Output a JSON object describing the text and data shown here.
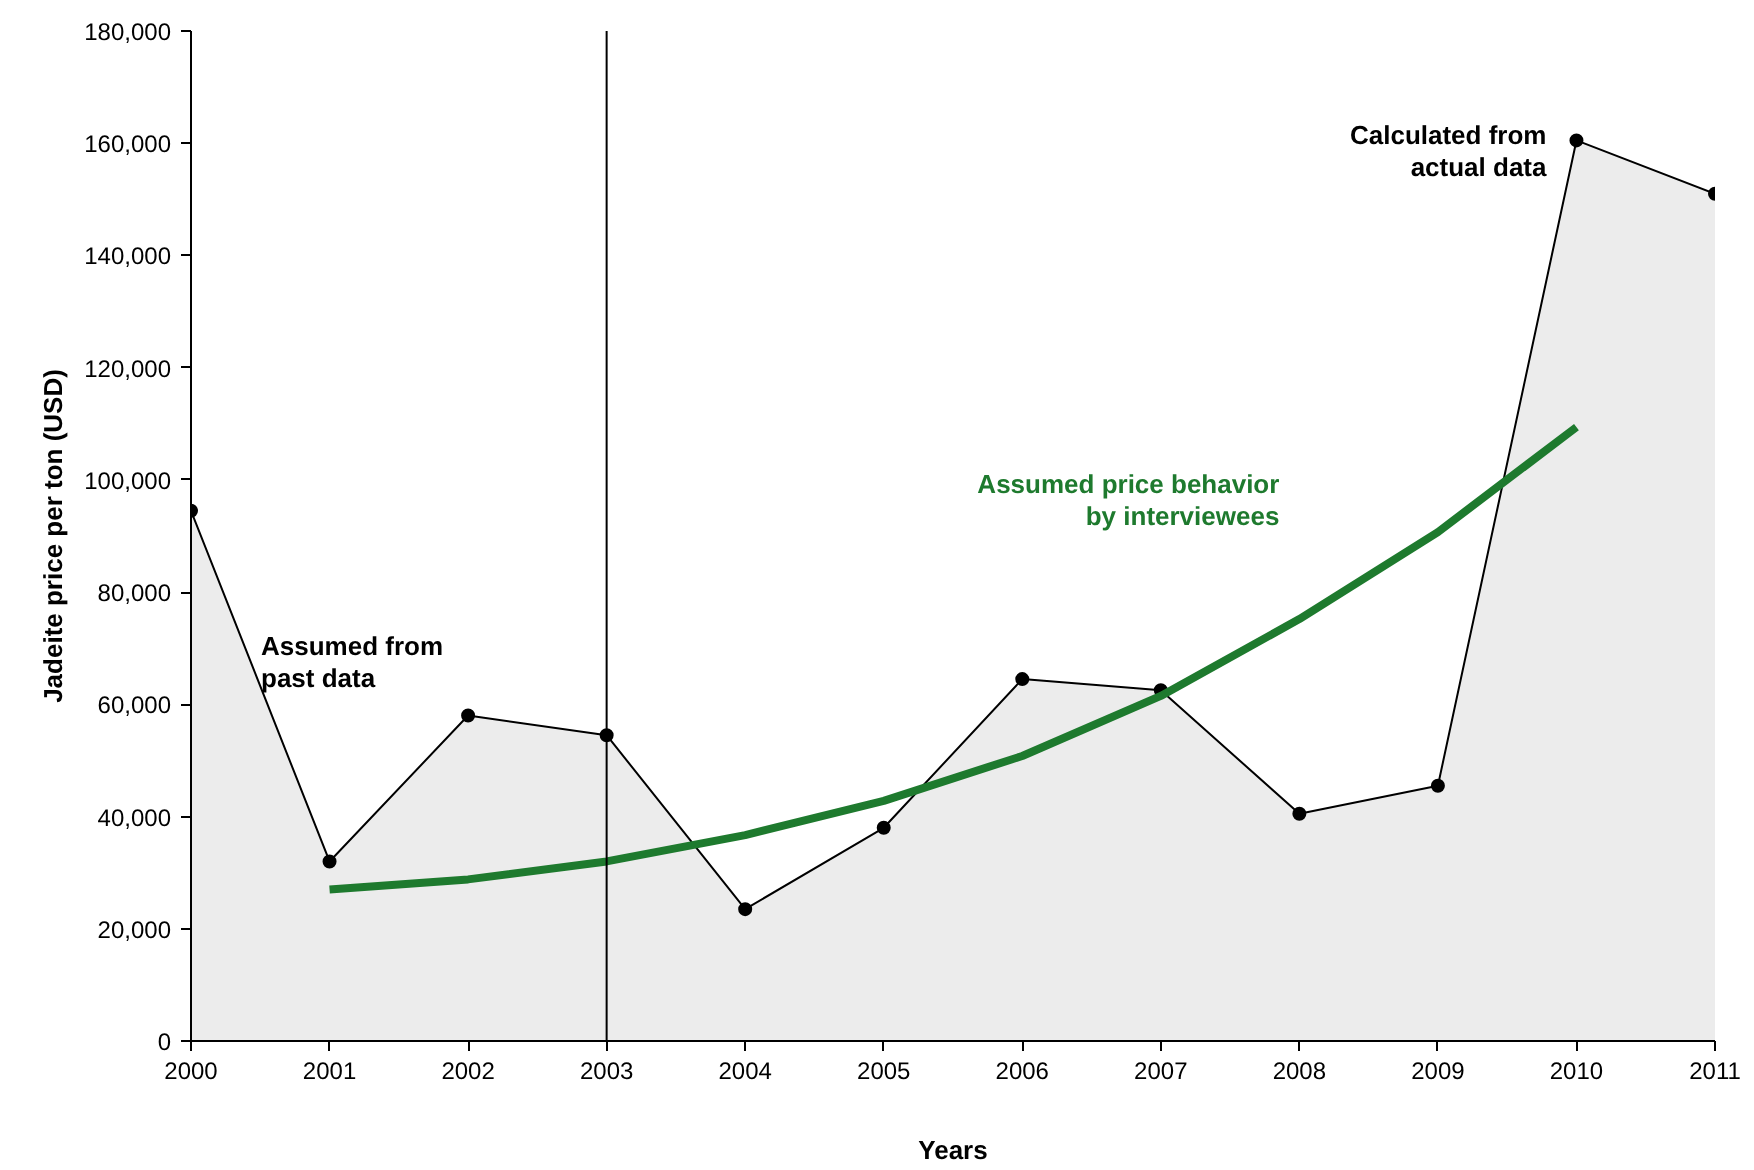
{
  "chart_data": {
    "type": "area",
    "xlabel": "Years",
    "ylabel": "Jadeite price per ton (USD)",
    "x": [
      2000,
      2001,
      2002,
      2003,
      2004,
      2005,
      2006,
      2007,
      2008,
      2009,
      2010,
      2011
    ],
    "series": [
      {
        "color": "#000000",
        "marker": "circle",
        "values": [
          94500,
          32000,
          58000,
          54500,
          23500,
          38000,
          64500,
          62500,
          40500,
          45500,
          160500,
          151000
        ]
      },
      {
        "type": "line",
        "name": "Assumed price behavior by interviewees",
        "color": "#1e7a2e",
        "marker": "none",
        "x": [
          2001,
          2002,
          2003,
          2004,
          2005,
          2006,
          2007,
          2008,
          2009,
          2010
        ],
        "values": [
          27000,
          28800,
          32000,
          36700,
          42800,
          50800,
          61500,
          75200,
          90700,
          109400
        ]
      }
    ],
    "annotations": [
      "Assumed from past data",
      "Calculated from actual data"
    ],
    "ref_lines": [
      {
        "axis": "x",
        "value": 2003,
        "label": null,
        "color": "#000000"
      }
    ],
    "xlim": [
      2000,
      2011
    ],
    "xticks": [
      2000,
      2001,
      2002,
      2003,
      2004,
      2005,
      2006,
      2007,
      2008,
      2009,
      2010,
      2011
    ],
    "ylim": [
      0,
      180000
    ],
    "yticks": [
      {
        "value": 0,
        "label": "0"
      },
      {
        "value": 20000,
        "label": "20,000"
      },
      {
        "value": 40000,
        "label": "40,000"
      },
      {
        "value": 60000,
        "label": "60,000"
      },
      {
        "value": 80000,
        "label": "80,000"
      },
      {
        "value": 100000,
        "label": "100,000"
      },
      {
        "value": 120000,
        "label": "120,000"
      },
      {
        "value": 140000,
        "label": "140,000"
      },
      {
        "value": 160000,
        "label": "160,000"
      },
      {
        "value": 180000,
        "label": "180,000"
      }
    ],
    "grid": false
  }
}
